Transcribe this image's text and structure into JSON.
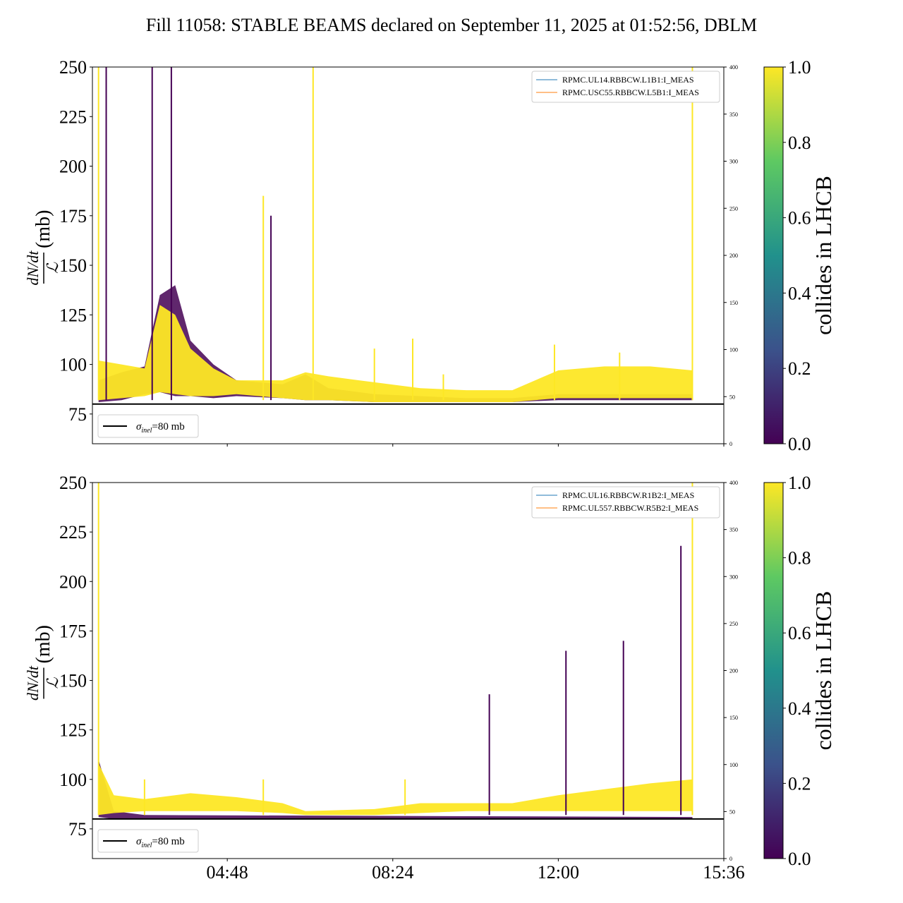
{
  "chart_data": {
    "type": "line",
    "title": "Fill 11058: STABLE BEAMS declared on September 11, 2025 at 01:52:56, DBLM",
    "x_axis": {
      "type": "time",
      "tick_labels": [
        "04:48",
        "08:24",
        "12:00",
        "15:36"
      ],
      "xlim": [
        "01:52",
        "15:36"
      ]
    },
    "colorbar": {
      "label": "collides in LHCB",
      "range": [
        0.0,
        1.0
      ],
      "tick_labels": [
        "0.0",
        "0.2",
        "0.4",
        "0.6",
        "0.8",
        "1.0"
      ],
      "colormap": [
        "#440154",
        "#3b528b",
        "#21918c",
        "#5ec962",
        "#fde725"
      ]
    },
    "panels": [
      {
        "ylabel_numerator": "dN/dt",
        "ylabel_denominator": "ℒ",
        "ylabel_unit": "(mb)",
        "ylim": [
          60,
          250
        ],
        "yticks": [
          75,
          100,
          125,
          150,
          175,
          200,
          225,
          250
        ],
        "secondary_ylim": [
          0,
          400
        ],
        "secondary_yticks": [
          0,
          50,
          100,
          150,
          200,
          250,
          300,
          350,
          400
        ],
        "reference_line": {
          "value": 80,
          "label_prefix": "σ",
          "label_sub": "inel",
          "label_suffix": "=80 mb"
        },
        "legend": [
          "RPMC.UL14.RBBCW.L1B1:I_MEAS",
          "RPMC.USC55.RBBCW.L5B1:I_MEAS"
        ],
        "series_colors": [
          "#1f77b4",
          "#ff7f0e"
        ],
        "noncolliding_band": [
          [
            "02:00",
            92,
            81
          ],
          [
            "02:30",
            96,
            82
          ],
          [
            "03:00",
            99,
            85
          ],
          [
            "03:20",
            135,
            86
          ],
          [
            "03:40",
            140,
            84
          ],
          [
            "04:00",
            112,
            84
          ],
          [
            "04:30",
            100,
            83
          ],
          [
            "05:00",
            92,
            84
          ],
          [
            "06:00",
            90,
            83
          ],
          [
            "06:30",
            95,
            82
          ],
          [
            "07:00",
            88,
            82
          ],
          [
            "08:00",
            85,
            81
          ],
          [
            "09:00",
            84,
            81
          ],
          [
            "10:00",
            83,
            81
          ],
          [
            "11:00",
            83,
            81
          ],
          [
            "12:00",
            85,
            82
          ],
          [
            "13:00",
            85,
            82
          ],
          [
            "14:00",
            85,
            82
          ],
          [
            "14:55",
            85,
            82
          ]
        ],
        "colliding_band": [
          [
            "02:00",
            102,
            82
          ],
          [
            "02:30",
            100,
            83
          ],
          [
            "03:00",
            98,
            84
          ],
          [
            "03:20",
            130,
            86
          ],
          [
            "03:40",
            125,
            85
          ],
          [
            "04:00",
            108,
            84
          ],
          [
            "04:30",
            98,
            84
          ],
          [
            "05:00",
            92,
            85
          ],
          [
            "06:00",
            92,
            83
          ],
          [
            "06:30",
            96,
            82
          ],
          [
            "07:00",
            94,
            82
          ],
          [
            "08:00",
            91,
            81
          ],
          [
            "09:00",
            88,
            81
          ],
          [
            "10:00",
            87,
            81
          ],
          [
            "11:00",
            87,
            81
          ],
          [
            "12:00",
            97,
            83
          ],
          [
            "13:00",
            99,
            83
          ],
          [
            "14:00",
            99,
            83
          ],
          [
            "14:55",
            97,
            83
          ]
        ],
        "spikes": [
          [
            "02:00",
            250,
            1
          ],
          [
            "02:10",
            250,
            0
          ],
          [
            "03:10",
            250,
            0
          ],
          [
            "03:35",
            250,
            0
          ],
          [
            "05:35",
            185,
            1
          ],
          [
            "05:45",
            175,
            0
          ],
          [
            "06:40",
            250,
            1
          ],
          [
            "08:00",
            108,
            1
          ],
          [
            "08:50",
            113,
            1
          ],
          [
            "09:30",
            95,
            1
          ],
          [
            "11:55",
            110,
            1
          ],
          [
            "13:20",
            106,
            1
          ],
          [
            "14:55",
            250,
            1
          ]
        ]
      },
      {
        "ylabel_numerator": "dN/dt",
        "ylabel_denominator": "ℒ",
        "ylabel_unit": "(mb)",
        "ylim": [
          60,
          250
        ],
        "yticks": [
          75,
          100,
          125,
          150,
          175,
          200,
          225,
          250
        ],
        "secondary_ylim": [
          0,
          400
        ],
        "secondary_yticks": [
          0,
          50,
          100,
          150,
          200,
          250,
          300,
          350,
          400
        ],
        "reference_line": {
          "value": 80,
          "label_prefix": "σ",
          "label_sub": "inel",
          "label_suffix": "=80 mb"
        },
        "legend": [
          "RPMC.UL16.RBBCW.R1B2:I_MEAS",
          "RPMC.UL557.RBBCW.R5B2:I_MEAS"
        ],
        "series_colors": [
          "#1f77b4",
          "#ff7f0e"
        ],
        "noncolliding_band": [
          [
            "02:00",
            110,
            81
          ],
          [
            "02:20",
            84,
            80
          ],
          [
            "03:00",
            82,
            80
          ],
          [
            "14:55",
            81,
            80
          ]
        ],
        "colliding_band": [
          [
            "02:00",
            108,
            82
          ],
          [
            "02:20",
            92,
            83
          ],
          [
            "03:00",
            90,
            84
          ],
          [
            "04:00",
            93,
            84
          ],
          [
            "05:00",
            91,
            84
          ],
          [
            "06:00",
            88,
            83
          ],
          [
            "06:30",
            84,
            82
          ],
          [
            "08:00",
            85,
            82
          ],
          [
            "09:00",
            88,
            83
          ],
          [
            "10:00",
            88,
            84
          ],
          [
            "11:00",
            88,
            84
          ],
          [
            "12:00",
            92,
            84
          ],
          [
            "13:00",
            95,
            84
          ],
          [
            "14:00",
            98,
            84
          ],
          [
            "14:55",
            100,
            84
          ]
        ],
        "spikes": [
          [
            "02:00",
            250,
            1
          ],
          [
            "03:00",
            100,
            1
          ],
          [
            "05:35",
            100,
            1
          ],
          [
            "08:40",
            100,
            1
          ],
          [
            "10:30",
            143,
            0
          ],
          [
            "12:10",
            165,
            0
          ],
          [
            "13:25",
            170,
            0
          ],
          [
            "14:40",
            218,
            0
          ],
          [
            "14:55",
            250,
            1
          ]
        ]
      }
    ]
  }
}
